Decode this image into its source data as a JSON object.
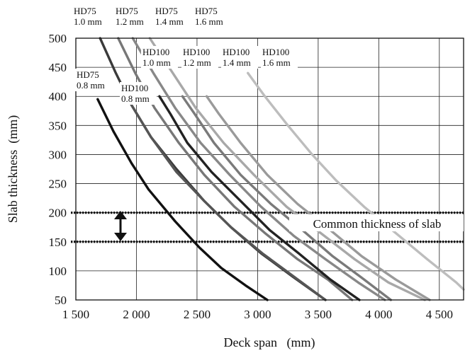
{
  "chart_data": {
    "type": "line",
    "title": "",
    "xlabel": "Deck span   (mm)",
    "ylabel": "Slab thickness  (mm)",
    "xlim": [
      1500,
      4700
    ],
    "ylim": [
      50,
      500
    ],
    "x_ticks": [
      1500,
      2000,
      2500,
      3000,
      3500,
      4000,
      4500
    ],
    "x_tick_labels": [
      "1 500",
      "2 000",
      "2 500",
      "3 000",
      "3 500",
      "4 000",
      "4 500"
    ],
    "y_ticks": [
      50,
      100,
      150,
      200,
      250,
      300,
      350,
      400,
      450,
      500
    ],
    "y_tick_labels": [
      "50",
      "100",
      "150",
      "200",
      "250",
      "300",
      "350",
      "400",
      "450",
      "500"
    ],
    "grid": true,
    "series": [
      {
        "name": "HD75 0.8 mm",
        "color": "#111111",
        "points": [
          [
            1680,
            395
          ],
          [
            1810,
            340
          ],
          [
            1960,
            285
          ],
          [
            2100,
            240
          ],
          [
            2320,
            185
          ],
          [
            2520,
            140
          ],
          [
            2700,
            105
          ],
          [
            2900,
            75
          ],
          [
            3080,
            50
          ]
        ]
      },
      {
        "name": "HD75 1.0 mm",
        "color": "#3a3a3a",
        "points": [
          [
            1700,
            500
          ],
          [
            1830,
            440
          ],
          [
            1960,
            385
          ],
          [
            2120,
            330
          ],
          [
            2330,
            275
          ],
          [
            2560,
            220
          ],
          [
            2780,
            175
          ],
          [
            3030,
            130
          ],
          [
            3290,
            90
          ],
          [
            3560,
            50
          ]
        ]
      },
      {
        "name": "HD100 0.8 mm",
        "color": "#555555",
        "points": [
          [
            1960,
            385
          ],
          [
            2120,
            330
          ],
          [
            2330,
            270
          ],
          [
            2560,
            220
          ],
          [
            2780,
            175
          ],
          [
            3040,
            130
          ],
          [
            3300,
            90
          ],
          [
            3560,
            50
          ]
        ]
      },
      {
        "name": "HD75 1.2 mm",
        "color": "#777777",
        "points": [
          [
            1850,
            500
          ],
          [
            1990,
            440
          ],
          [
            2150,
            380
          ],
          [
            2350,
            320
          ],
          [
            2560,
            265
          ],
          [
            2810,
            210
          ],
          [
            3060,
            165
          ],
          [
            3330,
            120
          ],
          [
            3580,
            85
          ],
          [
            3780,
            50
          ]
        ]
      },
      {
        "name": "HD100 1.0 mm",
        "color": "#222222",
        "points": [
          [
            2190,
            400
          ],
          [
            2280,
            370
          ],
          [
            2420,
            320
          ],
          [
            2620,
            270
          ],
          [
            2860,
            220
          ],
          [
            3100,
            170
          ],
          [
            3340,
            130
          ],
          [
            3600,
            85
          ],
          [
            3840,
            50
          ]
        ]
      },
      {
        "name": "HD75 1.4 mm",
        "color": "#888888",
        "points": [
          [
            1970,
            500
          ],
          [
            2140,
            440
          ],
          [
            2320,
            380
          ],
          [
            2530,
            320
          ],
          [
            2770,
            265
          ],
          [
            3030,
            210
          ],
          [
            3300,
            160
          ],
          [
            3560,
            120
          ],
          [
            3830,
            80
          ],
          [
            4050,
            50
          ]
        ]
      },
      {
        "name": "HD100 1.2 mm",
        "color": "#7a7a7a",
        "points": [
          [
            2380,
            400
          ],
          [
            2480,
            370
          ],
          [
            2640,
            320
          ],
          [
            2860,
            265
          ],
          [
            3110,
            215
          ],
          [
            3370,
            170
          ],
          [
            3620,
            125
          ],
          [
            3880,
            85
          ],
          [
            4100,
            50
          ]
        ]
      },
      {
        "name": "HD75 1.6 mm",
        "color": "#a8a8a8",
        "points": [
          [
            2110,
            500
          ],
          [
            2300,
            440
          ],
          [
            2490,
            380
          ],
          [
            2720,
            320
          ],
          [
            2970,
            265
          ],
          [
            3240,
            210
          ],
          [
            3520,
            165
          ],
          [
            3800,
            120
          ],
          [
            4080,
            80
          ],
          [
            4380,
            50
          ]
        ]
      },
      {
        "name": "HD100 1.4 mm",
        "color": "#9a9a9a",
        "points": [
          [
            2580,
            400
          ],
          [
            2680,
            370
          ],
          [
            2860,
            320
          ],
          [
            3080,
            265
          ],
          [
            3330,
            215
          ],
          [
            3600,
            170
          ],
          [
            3860,
            125
          ],
          [
            4140,
            85
          ],
          [
            4420,
            50
          ]
        ]
      },
      {
        "name": "HD100 1.6 mm",
        "color": "#bdbdbd",
        "points": [
          [
            2920,
            440
          ],
          [
            3060,
            400
          ],
          [
            3250,
            350
          ],
          [
            3450,
            300
          ],
          [
            3650,
            255
          ],
          [
            3880,
            210
          ],
          [
            4140,
            165
          ],
          [
            4400,
            120
          ],
          [
            4640,
            80
          ],
          [
            4700,
            68
          ]
        ]
      }
    ],
    "series_labels": [
      {
        "series": "HD75 1.0 mm",
        "lines": [
          "HD75",
          "1.0 mm"
        ]
      },
      {
        "series": "HD75 1.2 mm",
        "lines": [
          "HD75",
          "1.2 mm"
        ]
      },
      {
        "series": "HD75 1.4 mm",
        "lines": [
          "HD75",
          "1.4 mm"
        ]
      },
      {
        "series": "HD75 1.6 mm",
        "lines": [
          "HD75",
          "1.6 mm"
        ]
      },
      {
        "series": "HD100 1.0 mm",
        "lines": [
          "HD100",
          "1.0 mm"
        ]
      },
      {
        "series": "HD100 1.2 mm",
        "lines": [
          "HD100",
          "1.2 mm"
        ]
      },
      {
        "series": "HD100 1.4 mm",
        "lines": [
          "HD100",
          "1.4 mm"
        ]
      },
      {
        "series": "HD100 1.6 mm",
        "lines": [
          "HD100",
          "1.6 mm"
        ]
      },
      {
        "series": "HD75 0.8 mm",
        "lines": [
          "HD75",
          "0.8 mm"
        ]
      },
      {
        "series": "HD100 0.8 mm",
        "lines": [
          "HD100",
          "0.8 mm"
        ]
      }
    ],
    "reference_lines": [
      {
        "axis": "y",
        "value": 200,
        "style": "dotted"
      },
      {
        "axis": "y",
        "value": 150,
        "style": "dotted"
      }
    ],
    "annotations": [
      {
        "text": "Common thickness of slab",
        "range": [
          150,
          200
        ]
      }
    ]
  }
}
